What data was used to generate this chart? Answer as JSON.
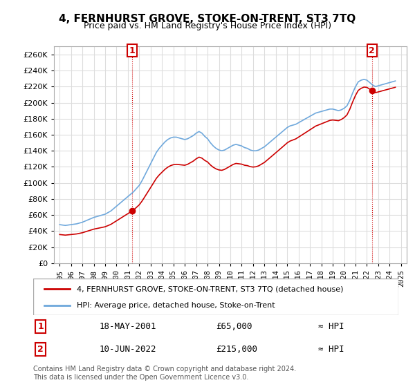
{
  "title": "4, FERNHURST GROVE, STOKE-ON-TRENT, ST3 7TQ",
  "subtitle": "Price paid vs. HM Land Registry's House Price Index (HPI)",
  "legend_line1": "4, FERNHURST GROVE, STOKE-ON-TRENT, ST3 7TQ (detached house)",
  "legend_line2": "HPI: Average price, detached house, Stoke-on-Trent",
  "footnote": "Contains HM Land Registry data © Crown copyright and database right 2024.\nThis data is licensed under the Open Government Licence v3.0.",
  "sale1_label": "1",
  "sale1_date": "18-MAY-2001",
  "sale1_price": "£65,000",
  "sale1_hpi": "≈ HPI",
  "sale2_label": "2",
  "sale2_date": "10-JUN-2022",
  "sale2_price": "£215,000",
  "sale2_hpi": "≈ HPI",
  "hpi_color": "#6fa8dc",
  "price_color": "#cc0000",
  "marker_color": "#cc0000",
  "grid_color": "#dddddd",
  "background_color": "#ffffff",
  "ylim": [
    0,
    270000
  ],
  "yticks": [
    0,
    20000,
    40000,
    60000,
    80000,
    100000,
    120000,
    140000,
    160000,
    180000,
    200000,
    220000,
    240000,
    260000
  ],
  "xlim_start": 1994.5,
  "xlim_end": 2025.5,
  "hpi_years": [
    1995.0,
    1995.25,
    1995.5,
    1995.75,
    1996.0,
    1996.25,
    1996.5,
    1996.75,
    1997.0,
    1997.25,
    1997.5,
    1997.75,
    1998.0,
    1998.25,
    1998.5,
    1998.75,
    1999.0,
    1999.25,
    1999.5,
    1999.75,
    2000.0,
    2000.25,
    2000.5,
    2000.75,
    2001.0,
    2001.25,
    2001.5,
    2001.75,
    2002.0,
    2002.25,
    2002.5,
    2002.75,
    2003.0,
    2003.25,
    2003.5,
    2003.75,
    2004.0,
    2004.25,
    2004.5,
    2004.75,
    2005.0,
    2005.25,
    2005.5,
    2005.75,
    2006.0,
    2006.25,
    2006.5,
    2006.75,
    2007.0,
    2007.25,
    2007.5,
    2007.75,
    2008.0,
    2008.25,
    2008.5,
    2008.75,
    2009.0,
    2009.25,
    2009.5,
    2009.75,
    2010.0,
    2010.25,
    2010.5,
    2010.75,
    2011.0,
    2011.25,
    2011.5,
    2011.75,
    2012.0,
    2012.25,
    2012.5,
    2012.75,
    2013.0,
    2013.25,
    2013.5,
    2013.75,
    2014.0,
    2014.25,
    2014.5,
    2014.75,
    2015.0,
    2015.25,
    2015.5,
    2015.75,
    2016.0,
    2016.25,
    2016.5,
    2016.75,
    2017.0,
    2017.25,
    2017.5,
    2017.75,
    2018.0,
    2018.25,
    2018.5,
    2018.75,
    2019.0,
    2019.25,
    2019.5,
    2019.75,
    2020.0,
    2020.25,
    2020.5,
    2020.75,
    2021.0,
    2021.25,
    2021.5,
    2021.75,
    2022.0,
    2022.25,
    2022.5,
    2022.75,
    2023.0,
    2023.25,
    2023.5,
    2023.75,
    2024.0,
    2024.25,
    2024.5
  ],
  "hpi_values": [
    48000,
    47500,
    47000,
    47500,
    48000,
    48500,
    49000,
    50000,
    51000,
    52500,
    54000,
    55500,
    57000,
    58000,
    59000,
    60000,
    61000,
    63000,
    65000,
    68000,
    71000,
    74000,
    77000,
    80000,
    83000,
    86000,
    89000,
    93000,
    97000,
    103000,
    110000,
    117000,
    124000,
    131000,
    138000,
    143000,
    147000,
    151000,
    154000,
    156000,
    157000,
    157000,
    156000,
    155000,
    154000,
    155000,
    157000,
    159000,
    162000,
    164000,
    162000,
    158000,
    155000,
    150000,
    146000,
    143000,
    141000,
    140000,
    141000,
    143000,
    145000,
    147000,
    148000,
    147000,
    146000,
    144000,
    143000,
    141000,
    140000,
    140000,
    141000,
    143000,
    145000,
    148000,
    151000,
    154000,
    157000,
    160000,
    163000,
    166000,
    169000,
    171000,
    172000,
    173000,
    175000,
    177000,
    179000,
    181000,
    183000,
    185000,
    187000,
    188000,
    189000,
    190000,
    191000,
    192000,
    192000,
    191000,
    190000,
    191000,
    193000,
    196000,
    203000,
    212000,
    220000,
    226000,
    228000,
    229000,
    228000,
    225000,
    222000,
    220000,
    221000,
    222000,
    223000,
    224000,
    225000,
    226000,
    227000
  ],
  "sale1_year": 2001.37,
  "sale1_value": 65000,
  "sale2_year": 2022.44,
  "sale2_value": 215000
}
